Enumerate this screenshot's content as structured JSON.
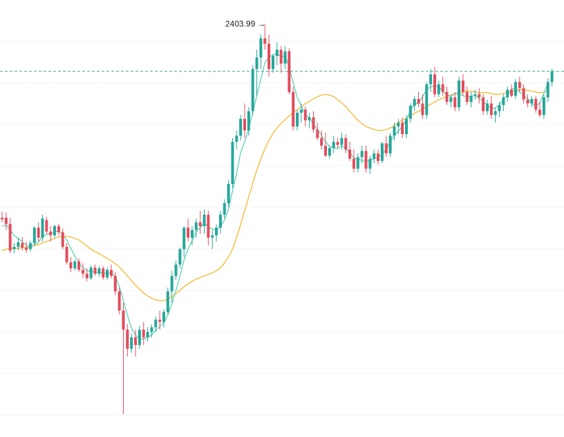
{
  "chart_data": {
    "type": "candlestick",
    "title": "",
    "xlabel": "",
    "ylabel": "",
    "ylim": [
      1865,
      2435
    ],
    "grid": true,
    "annotations": {
      "high_label": "2403.99",
      "high_arrow": "→",
      "current_level": 2342
    },
    "colors": {
      "up": "#26a69a",
      "down": "#e34d5c",
      "ma_fast": "#5fd1b4",
      "ma_slow": "#f5b72b",
      "dashed_line": "#3aa38f",
      "grid": "#f2f3f5",
      "background": "#ffffff"
    },
    "series": [
      {
        "name": "",
        "role": "candles",
        "ohlc": [
          [
            2151,
            2159,
            2145,
            2149
          ],
          [
            2151,
            2158,
            2135,
            2143
          ],
          [
            2143,
            2151,
            2105,
            2108
          ],
          [
            2110,
            2118,
            2105,
            2113
          ],
          [
            2113,
            2125,
            2108,
            2119
          ],
          [
            2118,
            2126,
            2108,
            2112
          ],
          [
            2112,
            2120,
            2105,
            2109
          ],
          [
            2110,
            2121,
            2107,
            2118
          ],
          [
            2118,
            2140,
            2115,
            2138
          ],
          [
            2138,
            2145,
            2120,
            2125
          ],
          [
            2125,
            2155,
            2120,
            2150
          ],
          [
            2148,
            2152,
            2130,
            2133
          ],
          [
            2133,
            2140,
            2120,
            2128
          ],
          [
            2128,
            2142,
            2125,
            2140
          ],
          [
            2140,
            2143,
            2128,
            2132
          ],
          [
            2132,
            2137,
            2110,
            2113
          ],
          [
            2113,
            2118,
            2090,
            2093
          ],
          [
            2093,
            2100,
            2080,
            2085
          ],
          [
            2085,
            2096,
            2082,
            2094
          ],
          [
            2094,
            2098,
            2080,
            2083
          ],
          [
            2083,
            2092,
            2072,
            2078
          ],
          [
            2078,
            2085,
            2068,
            2072
          ],
          [
            2072,
            2089,
            2070,
            2086
          ],
          [
            2086,
            2090,
            2075,
            2078
          ],
          [
            2078,
            2088,
            2074,
            2085
          ],
          [
            2085,
            2088,
            2070,
            2073
          ],
          [
            2073,
            2086,
            2070,
            2083
          ],
          [
            2083,
            2090,
            2072,
            2075
          ],
          [
            2075,
            2080,
            2050,
            2055
          ],
          [
            2055,
            2060,
            2025,
            2030
          ],
          [
            2030,
            2040,
            1895,
            2005
          ],
          [
            2005,
            2012,
            1970,
            1980
          ],
          [
            1980,
            2000,
            1975,
            1995
          ],
          [
            1995,
            2005,
            1970,
            1985
          ],
          [
            1985,
            2010,
            1980,
            2005
          ],
          [
            2005,
            2015,
            1985,
            1995
          ],
          [
            1995,
            2008,
            1990,
            2002
          ],
          [
            2002,
            2012,
            1995,
            2008
          ],
          [
            2008,
            2022,
            2002,
            2018
          ],
          [
            2018,
            2030,
            2005,
            2015
          ],
          [
            2015,
            2032,
            2008,
            2028
          ],
          [
            2028,
            2060,
            2025,
            2055
          ],
          [
            2055,
            2082,
            2040,
            2075
          ],
          [
            2075,
            2095,
            2070,
            2090
          ],
          [
            2090,
            2112,
            2085,
            2110
          ],
          [
            2110,
            2140,
            2100,
            2138
          ],
          [
            2138,
            2150,
            2120,
            2125
          ],
          [
            2125,
            2140,
            2115,
            2135
          ],
          [
            2135,
            2150,
            2125,
            2145
          ],
          [
            2145,
            2160,
            2130,
            2140
          ],
          [
            2140,
            2162,
            2130,
            2155
          ],
          [
            2155,
            2160,
            2115,
            2125
          ],
          [
            2125,
            2135,
            2110,
            2128
          ],
          [
            2128,
            2142,
            2120,
            2138
          ],
          [
            2138,
            2160,
            2130,
            2155
          ],
          [
            2155,
            2175,
            2150,
            2170
          ],
          [
            2170,
            2200,
            2165,
            2195
          ],
          [
            2195,
            2255,
            2190,
            2250
          ],
          [
            2250,
            2265,
            2240,
            2258
          ],
          [
            2258,
            2285,
            2252,
            2280
          ],
          [
            2280,
            2300,
            2255,
            2265
          ],
          [
            2265,
            2295,
            2258,
            2290
          ],
          [
            2290,
            2350,
            2285,
            2345
          ],
          [
            2345,
            2370,
            2310,
            2360
          ],
          [
            2360,
            2390,
            2345,
            2385
          ],
          [
            2385,
            2404,
            2370,
            2378
          ],
          [
            2378,
            2390,
            2335,
            2345
          ],
          [
            2345,
            2365,
            2340,
            2362
          ],
          [
            2362,
            2380,
            2350,
            2370
          ],
          [
            2370,
            2375,
            2340,
            2352
          ],
          [
            2352,
            2375,
            2345,
            2368
          ],
          [
            2368,
            2372,
            2312,
            2315
          ],
          [
            2315,
            2322,
            2265,
            2270
          ],
          [
            2270,
            2292,
            2265,
            2288
          ],
          [
            2288,
            2300,
            2275,
            2292
          ],
          [
            2292,
            2296,
            2270,
            2278
          ],
          [
            2278,
            2288,
            2268,
            2282
          ],
          [
            2282,
            2290,
            2262,
            2266
          ],
          [
            2266,
            2275,
            2252,
            2255
          ],
          [
            2255,
            2265,
            2240,
            2245
          ],
          [
            2245,
            2262,
            2230,
            2232
          ],
          [
            2232,
            2245,
            2228,
            2242
          ],
          [
            2242,
            2258,
            2235,
            2250
          ],
          [
            2250,
            2255,
            2242,
            2246
          ],
          [
            2246,
            2262,
            2240,
            2255
          ],
          [
            2255,
            2260,
            2235,
            2240
          ],
          [
            2240,
            2250,
            2225,
            2228
          ],
          [
            2228,
            2240,
            2210,
            2215
          ],
          [
            2215,
            2235,
            2210,
            2230
          ],
          [
            2230,
            2245,
            2222,
            2238
          ],
          [
            2238,
            2245,
            2210,
            2215
          ],
          [
            2215,
            2232,
            2208,
            2228
          ],
          [
            2228,
            2240,
            2222,
            2235
          ],
          [
            2235,
            2240,
            2220,
            2225
          ],
          [
            2225,
            2250,
            2222,
            2248
          ],
          [
            2248,
            2258,
            2230,
            2235
          ],
          [
            2235,
            2262,
            2230,
            2258
          ],
          [
            2258,
            2275,
            2252,
            2270
          ],
          [
            2270,
            2280,
            2260,
            2275
          ],
          [
            2275,
            2282,
            2255,
            2260
          ],
          [
            2260,
            2285,
            2255,
            2280
          ],
          [
            2280,
            2300,
            2275,
            2297
          ],
          [
            2297,
            2310,
            2290,
            2306
          ],
          [
            2306,
            2315,
            2295,
            2300
          ],
          [
            2300,
            2312,
            2280,
            2285
          ],
          [
            2285,
            2328,
            2280,
            2325
          ],
          [
            2325,
            2345,
            2315,
            2338
          ],
          [
            2338,
            2348,
            2308,
            2312
          ],
          [
            2312,
            2330,
            2308,
            2325
          ],
          [
            2325,
            2335,
            2310,
            2315
          ],
          [
            2315,
            2322,
            2298,
            2302
          ],
          [
            2302,
            2310,
            2295,
            2308
          ],
          [
            2308,
            2315,
            2290,
            2295
          ],
          [
            2295,
            2335,
            2290,
            2330
          ],
          [
            2330,
            2338,
            2310,
            2315
          ],
          [
            2315,
            2322,
            2298,
            2302
          ],
          [
            2302,
            2315,
            2295,
            2310
          ],
          [
            2310,
            2318,
            2305,
            2312
          ],
          [
            2312,
            2320,
            2300,
            2308
          ],
          [
            2308,
            2312,
            2285,
            2290
          ],
          [
            2290,
            2305,
            2285,
            2300
          ],
          [
            2300,
            2310,
            2280,
            2285
          ],
          [
            2285,
            2295,
            2275,
            2290
          ],
          [
            2290,
            2302,
            2282,
            2298
          ],
          [
            2298,
            2312,
            2290,
            2308
          ],
          [
            2308,
            2322,
            2302,
            2318
          ],
          [
            2318,
            2325,
            2308,
            2310
          ],
          [
            2310,
            2332,
            2306,
            2328
          ],
          [
            2328,
            2335,
            2315,
            2320
          ],
          [
            2320,
            2325,
            2300,
            2305
          ],
          [
            2305,
            2312,
            2295,
            2300
          ],
          [
            2300,
            2310,
            2295,
            2306
          ],
          [
            2306,
            2310,
            2288,
            2292
          ],
          [
            2292,
            2302,
            2282,
            2285
          ],
          [
            2285,
            2312,
            2280,
            2308
          ],
          [
            2308,
            2333,
            2302,
            2328
          ],
          [
            2328,
            2345,
            2322,
            2342
          ]
        ]
      },
      {
        "name": "",
        "role": "ma_fast",
        "values": [
          2140,
          2142,
          2135,
          2128,
          2124,
          2120,
          2115,
          2112,
          2116,
          2119,
          2127,
          2129,
          2130,
          2132,
          2134,
          2129,
          2122,
          2111,
          2101,
          2092,
          2086,
          2082,
          2081,
          2080,
          2079,
          2079,
          2078,
          2079,
          2074,
          2062,
          2043,
          2024,
          2007,
          1998,
          1993,
          1993,
          1995,
          1998,
          2004,
          2009,
          2014,
          2024,
          2039,
          2056,
          2075,
          2096,
          2110,
          2121,
          2132,
          2138,
          2144,
          2139,
          2136,
          2136,
          2139,
          2148,
          2162,
          2186,
          2209,
          2236,
          2250,
          2267,
          2289,
          2310,
          2332,
          2353,
          2361,
          2363,
          2365,
          2361,
          2362,
          2348,
          2327,
          2308,
          2297,
          2286,
          2280,
          2273,
          2266,
          2259,
          2250,
          2244,
          2242,
          2241,
          2245,
          2241,
          2236,
          2229,
          2227,
          2226,
          2224,
          2226,
          2228,
          2229,
          2234,
          2240,
          2250,
          2258,
          2264,
          2270,
          2279,
          2291,
          2300,
          2300,
          2309,
          2318,
          2322,
          2323,
          2322,
          2316,
          2311,
          2309,
          2313,
          2313,
          2310,
          2309,
          2309,
          2311,
          2306,
          2303,
          2298,
          2293,
          2294,
          2298,
          2306,
          2311,
          2319,
          2320,
          2315,
          2311,
          2306,
          2300,
          2296,
          2301,
          2313,
          2327
        ]
      },
      {
        "name": "",
        "role": "ma_slow",
        "values": [
          2108,
          2110,
          2111,
          2111,
          2111,
          2112,
          2112,
          2113,
          2115,
          2116,
          2118,
          2120,
          2122,
          2124,
          2126,
          2127,
          2127,
          2126,
          2124,
          2122,
          2118,
          2114,
          2110,
          2107,
          2104,
          2101,
          2098,
          2095,
          2091,
          2087,
          2081,
          2075,
          2069,
          2063,
          2058,
          2053,
          2049,
          2046,
          2044,
          2043,
          2043,
          2045,
          2048,
          2052,
          2056,
          2061,
          2065,
          2068,
          2071,
          2073,
          2075,
          2077,
          2079,
          2082,
          2086,
          2092,
          2100,
          2110,
          2125,
          2142,
          2160,
          2178,
          2196,
          2213,
          2228,
          2241,
          2252,
          2261,
          2268,
          2274,
          2279,
          2284,
          2288,
          2292,
          2296,
          2300,
          2303,
          2306,
          2309,
          2311,
          2312,
          2311,
          2309,
          2305,
          2301,
          2296,
          2290,
          2284,
          2278,
          2274,
          2270,
          2268,
          2266,
          2265,
          2265,
          2266,
          2268,
          2271,
          2275,
          2278,
          2281,
          2284,
          2287,
          2290,
          2293,
          2296,
          2299,
          2302,
          2305,
          2307,
          2309,
          2311,
          2313,
          2314,
          2315,
          2316,
          2316,
          2315,
          2314,
          2314,
          2314,
          2313,
          2312,
          2312,
          2313,
          2314,
          2316,
          2317,
          2318,
          2318,
          2317,
          2316,
          2315,
          2314,
          2315,
          2317
        ]
      }
    ]
  }
}
